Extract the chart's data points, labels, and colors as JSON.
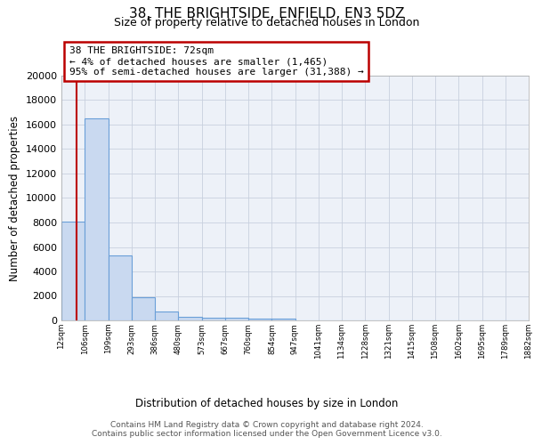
{
  "title1": "38, THE BRIGHTSIDE, ENFIELD, EN3 5DZ",
  "title2": "Size of property relative to detached houses in London",
  "xlabel": "Distribution of detached houses by size in London",
  "ylabel": "Number of detached properties",
  "bins": [
    12,
    106,
    199,
    293,
    386,
    480,
    573,
    667,
    760,
    854,
    947,
    1041,
    1134,
    1228,
    1321,
    1415,
    1508,
    1602,
    1695,
    1789,
    1882
  ],
  "bar_heights": [
    8100,
    16500,
    5300,
    1900,
    700,
    300,
    200,
    200,
    150,
    150,
    0,
    0,
    0,
    0,
    0,
    0,
    0,
    0,
    0,
    0
  ],
  "bar_color": "#c9d9f0",
  "bar_edge_color": "#6a9fd8",
  "grid_color": "#c8d0de",
  "bg_color": "#edf1f8",
  "red_line_x": 72,
  "red_line_color": "#bb0000",
  "ylim": [
    0,
    20000
  ],
  "yticks": [
    0,
    2000,
    4000,
    6000,
    8000,
    10000,
    12000,
    14000,
    16000,
    18000,
    20000
  ],
  "annotation_text": "38 THE BRIGHTSIDE: 72sqm\n← 4% of detached houses are smaller (1,465)\n95% of semi-detached houses are larger (31,388) →",
  "annotation_box_color": "#ffffff",
  "annotation_box_edge": "#bb0000",
  "footer": "Contains HM Land Registry data © Crown copyright and database right 2024.\nContains public sector information licensed under the Open Government Licence v3.0.",
  "tick_labels": [
    "12sqm",
    "106sqm",
    "199sqm",
    "293sqm",
    "386sqm",
    "480sqm",
    "573sqm",
    "667sqm",
    "760sqm",
    "854sqm",
    "947sqm",
    "1041sqm",
    "1134sqm",
    "1228sqm",
    "1321sqm",
    "1415sqm",
    "1508sqm",
    "1602sqm",
    "1695sqm",
    "1789sqm",
    "1882sqm"
  ]
}
